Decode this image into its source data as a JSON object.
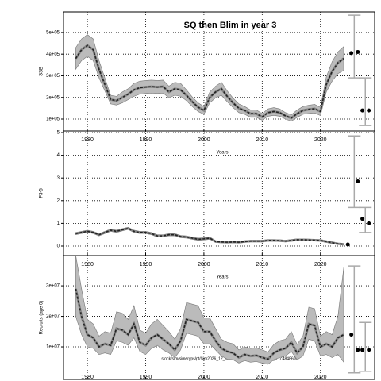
{
  "chart_data": [
    {
      "type": "line",
      "title": "SQ then Blim in year 3",
      "ylabel": "SSB",
      "xlabel": "Years",
      "x": [
        1978,
        1979,
        1980,
        1981,
        1982,
        1983,
        1984,
        1985,
        1986,
        1987,
        1988,
        1989,
        1990,
        1991,
        1992,
        1993,
        1994,
        1995,
        1996,
        1997,
        1998,
        1999,
        2000,
        2001,
        2002,
        2003,
        2004,
        2005,
        2006,
        2007,
        2008,
        2009,
        2010,
        2011,
        2012,
        2013,
        2014,
        2015,
        2016,
        2017,
        2018,
        2019,
        2020,
        2021,
        2022,
        2023,
        2024
      ],
      "xlim": [
        1975.9,
        2029.3
      ],
      "xticks": [
        1980,
        1990,
        2000,
        2010,
        2020
      ],
      "ylim": [
        45000,
        595000
      ],
      "yticks": [
        {
          "value": 100000,
          "label": "1e+05"
        },
        {
          "value": 200000,
          "label": "2e+05"
        },
        {
          "value": 300000,
          "label": "3e+05"
        },
        {
          "value": 400000,
          "label": "4e+05"
        },
        {
          "value": 500000,
          "label": "5e+05"
        }
      ],
      "grid": true,
      "series": [
        {
          "color": "#222222",
          "band_color": "#bbbbbb",
          "values": [
            380000,
            420000,
            440000,
            420000,
            330000,
            260000,
            190000,
            185000,
            200000,
            215000,
            235000,
            245000,
            248000,
            250000,
            248000,
            250000,
            225000,
            240000,
            235000,
            210000,
            180000,
            155000,
            140000,
            200000,
            225000,
            240000,
            205000,
            175000,
            150000,
            140000,
            125000,
            125000,
            110000,
            130000,
            135000,
            130000,
            115000,
            105000,
            125000,
            140000,
            145000,
            148000,
            135000,
            260000,
            320000,
            360000,
            380000
          ],
          "lower": [
            330000,
            370000,
            390000,
            370000,
            290000,
            230000,
            170000,
            165000,
            175000,
            190000,
            205000,
            215000,
            218000,
            220000,
            218000,
            220000,
            198000,
            210000,
            205000,
            185000,
            158000,
            135000,
            122000,
            175000,
            198000,
            210000,
            180000,
            153000,
            130000,
            122000,
            108000,
            108000,
            95000,
            113000,
            117000,
            113000,
            100000,
            90000,
            108000,
            122000,
            126000,
            128000,
            116000,
            225000,
            275000,
            310000,
            325000
          ],
          "upper": [
            430000,
            470000,
            490000,
            470000,
            370000,
            290000,
            210000,
            205000,
            225000,
            240000,
            265000,
            275000,
            278000,
            280000,
            278000,
            280000,
            252000,
            270000,
            265000,
            235000,
            202000,
            175000,
            158000,
            225000,
            252000,
            270000,
            230000,
            197000,
            170000,
            158000,
            142000,
            142000,
            125000,
            147000,
            153000,
            147000,
            130000,
            120000,
            142000,
            158000,
            164000,
            168000,
            154000,
            295000,
            365000,
            410000,
            435000
          ]
        }
      ],
      "projection": {
        "x": [
          2025.3,
          2026.4,
          2027.2,
          2028.3
        ],
        "values": [
          405000,
          410000,
          140000,
          140000
        ],
        "color": "#000000"
      },
      "intervals": [
        {
          "x": 2025.8,
          "lower": 290000,
          "upper": 580000
        },
        {
          "x": 2027.7,
          "lower": 70000,
          "upper": 290000
        }
      ],
      "interval_color": "#aaaaaa"
    },
    {
      "type": "line",
      "ylabel": "F3-5",
      "xlabel": "Years",
      "x": [
        1978,
        1979,
        1980,
        1981,
        1982,
        1983,
        1984,
        1985,
        1986,
        1987,
        1988,
        1989,
        1990,
        1991,
        1992,
        1993,
        1994,
        1995,
        1996,
        1997,
        1998,
        1999,
        2000,
        2001,
        2002,
        2003,
        2004,
        2005,
        2006,
        2007,
        2008,
        2009,
        2010,
        2011,
        2012,
        2013,
        2014,
        2015,
        2016,
        2017,
        2018,
        2019,
        2020,
        2021,
        2022,
        2023,
        2024
      ],
      "xlim": [
        1975.9,
        2029.3
      ],
      "xticks": [
        1980,
        1990,
        2000,
        2010,
        2020
      ],
      "ylim": [
        -0.42,
        5.07
      ],
      "yticks": [
        0,
        1,
        2,
        3,
        4,
        5
      ],
      "grid": true,
      "series": [
        {
          "color": "#222222",
          "band_color": "#bbbbbb",
          "values": [
            0.55,
            0.6,
            0.65,
            0.6,
            0.5,
            0.6,
            0.7,
            0.65,
            0.72,
            0.78,
            0.65,
            0.6,
            0.6,
            0.55,
            0.45,
            0.45,
            0.5,
            0.5,
            0.42,
            0.4,
            0.35,
            0.3,
            0.32,
            0.35,
            0.2,
            0.18,
            0.17,
            0.18,
            0.17,
            0.2,
            0.22,
            0.22,
            0.22,
            0.25,
            0.25,
            0.24,
            0.22,
            0.25,
            0.28,
            0.28,
            0.27,
            0.26,
            0.25,
            0.2,
            0.15,
            0.1,
            0.08
          ],
          "lower": [
            0.5,
            0.55,
            0.6,
            0.55,
            0.45,
            0.55,
            0.65,
            0.6,
            0.67,
            0.73,
            0.6,
            0.55,
            0.55,
            0.5,
            0.4,
            0.4,
            0.45,
            0.45,
            0.37,
            0.35,
            0.3,
            0.25,
            0.27,
            0.3,
            0.16,
            0.14,
            0.13,
            0.14,
            0.13,
            0.16,
            0.18,
            0.18,
            0.18,
            0.21,
            0.21,
            0.2,
            0.18,
            0.21,
            0.24,
            0.24,
            0.23,
            0.22,
            0.21,
            0.16,
            0.11,
            0.07,
            0.05
          ],
          "upper": [
            0.6,
            0.65,
            0.7,
            0.65,
            0.55,
            0.65,
            0.75,
            0.7,
            0.77,
            0.83,
            0.7,
            0.65,
            0.65,
            0.6,
            0.5,
            0.5,
            0.55,
            0.55,
            0.47,
            0.45,
            0.4,
            0.35,
            0.37,
            0.4,
            0.24,
            0.22,
            0.21,
            0.22,
            0.21,
            0.24,
            0.26,
            0.26,
            0.26,
            0.29,
            0.29,
            0.28,
            0.26,
            0.29,
            0.32,
            0.32,
            0.31,
            0.3,
            0.29,
            0.24,
            0.19,
            0.13,
            0.11
          ]
        }
      ],
      "projection": {
        "x": [
          2024.7,
          2026.4,
          2027.2,
          2028.3
        ],
        "values": [
          0.07,
          2.85,
          1.2,
          1.0
        ],
        "color": "#000000"
      },
      "intervals": [
        {
          "x": 2025.8,
          "lower": 1.7,
          "upper": 4.85
        },
        {
          "x": 2027.7,
          "lower": 0.6,
          "upper": 1.7
        }
      ],
      "interval_color": "#aaaaaa"
    },
    {
      "type": "line",
      "ylabel": "Recruits (age 0)",
      "x": [
        1978,
        1979,
        1980,
        1981,
        1982,
        1983,
        1984,
        1985,
        1986,
        1987,
        1988,
        1989,
        1990,
        1991,
        1992,
        1993,
        1994,
        1995,
        1996,
        1997,
        1998,
        1999,
        2000,
        2001,
        2002,
        2003,
        2004,
        2005,
        2006,
        2007,
        2008,
        2009,
        2010,
        2011,
        2012,
        2013,
        2014,
        2015,
        2016,
        2017,
        2018,
        2019,
        2020,
        2021,
        2022,
        2023,
        2024
      ],
      "xlim": [
        1975.9,
        2029.3
      ],
      "xticks": [
        1980,
        1990,
        2000,
        2010,
        2020
      ],
      "ylim": [
        -650000,
        39900000
      ],
      "yticks": [
        {
          "value": 10000000,
          "label": "1e+07"
        },
        {
          "value": 20000000,
          "label": "2e+07"
        },
        {
          "value": 30000000,
          "label": "3e+07"
        }
      ],
      "grid": true,
      "series": [
        {
          "color": "#222222",
          "band_color": "#bbbbbb",
          "values": [
            29000000,
            20000000,
            14000000,
            13000000,
            10000000,
            11000000,
            10500000,
            16000000,
            15500000,
            14000000,
            17500000,
            11500000,
            10500000,
            13000000,
            14000000,
            12500000,
            11000000,
            9000000,
            12000000,
            19000000,
            18500000,
            18000000,
            15000000,
            15000000,
            12000000,
            9500000,
            8500000,
            8000000,
            6500000,
            7500000,
            7000000,
            7200000,
            6500000,
            6000000,
            8000000,
            9000000,
            9500000,
            11500000,
            8000000,
            10000000,
            17500000,
            17000000,
            10000000,
            11000000,
            10000000,
            13000000,
            14000000
          ],
          "lower": [
            20000000,
            14000000,
            10000000,
            9500000,
            7500000,
            8000000,
            7500000,
            12000000,
            11500000,
            10500000,
            13000000,
            8500000,
            7500000,
            9500000,
            10500000,
            9000000,
            8000000,
            6500000,
            9000000,
            14500000,
            14000000,
            13500000,
            11000000,
            11000000,
            9000000,
            7000000,
            6000000,
            5800000,
            4700000,
            5500000,
            5000000,
            5200000,
            4700000,
            4300000,
            5800000,
            6500000,
            7000000,
            8500000,
            5800000,
            7000000,
            12500000,
            12000000,
            7000000,
            7500000,
            6500000,
            7500000,
            5000000
          ],
          "upper": [
            40000000,
            29000000,
            19000000,
            17500000,
            13500000,
            15000000,
            14500000,
            21500000,
            21000000,
            19000000,
            23500000,
            15500000,
            14500000,
            17500000,
            19000000,
            17000000,
            15000000,
            12500000,
            16000000,
            24500000,
            24000000,
            23500000,
            19500000,
            19500000,
            16000000,
            12500000,
            11500000,
            11000000,
            9000000,
            10000000,
            9500000,
            9700000,
            9000000,
            8300000,
            10800000,
            12000000,
            12500000,
            15000000,
            10800000,
            13500000,
            23000000,
            22500000,
            13500000,
            15000000,
            14000000,
            20000000,
            36000000
          ]
        }
      ],
      "projection": {
        "x": [
          2025.3,
          2026.4,
          2027.2,
          2028.3
        ],
        "values": [
          14000000,
          9000000,
          9000000,
          9000000
        ],
        "color": "#000000"
      },
      "intervals": [
        {
          "x": 2025.8,
          "lower": 1500000,
          "upper": 36500000
        },
        {
          "x": 2027.7,
          "lower": 2000000,
          "upper": 18000000
        }
      ],
      "interval_color": "#aaaaaa"
    }
  ],
  "footer": "stock/sim/simeryps/pt/Sim2026_12_newID_normal_FC.r19682_pt.1c4848606/"
}
